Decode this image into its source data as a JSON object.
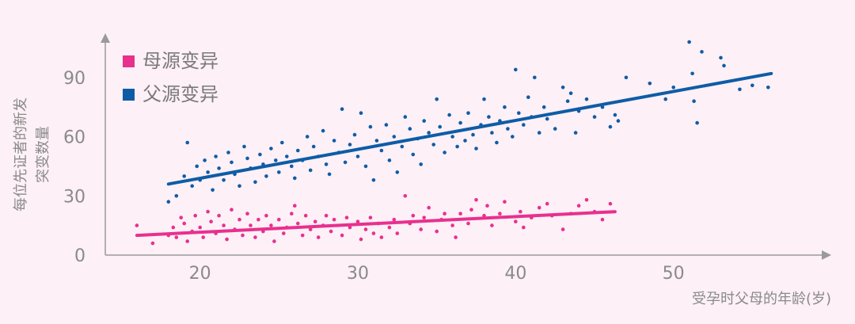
{
  "chart_data": {
    "type": "scatter",
    "title": "",
    "xlabel": "受孕时父母的年龄(岁)",
    "ylabel_line1": "每位先证者的新发",
    "ylabel_line2": "突变数量",
    "x_ticks": [
      "20",
      "30",
      "40",
      "50"
    ],
    "y_ticks": [
      "0",
      "30",
      "60",
      "90"
    ],
    "xlim": [
      15,
      60
    ],
    "ylim": [
      0,
      110
    ],
    "grid": false,
    "legend_position": "top-left",
    "colors": {
      "maternal": "#e8308f",
      "paternal": "#0e5ca6",
      "axis": "#9a9a9a",
      "background": "#fdf0f6"
    },
    "series": [
      {
        "name": "母源变异",
        "key": "maternal",
        "color": "#e8308f",
        "trend": {
          "x": [
            16,
            46.3
          ],
          "y": [
            10,
            22
          ]
        },
        "points": [
          [
            16,
            15
          ],
          [
            17,
            6
          ],
          [
            18,
            10
          ],
          [
            18.3,
            14
          ],
          [
            18.5,
            9
          ],
          [
            18.8,
            19
          ],
          [
            19,
            16
          ],
          [
            19.2,
            7
          ],
          [
            19.5,
            12
          ],
          [
            19.7,
            20
          ],
          [
            20,
            14
          ],
          [
            20.2,
            9
          ],
          [
            20.5,
            22
          ],
          [
            20.7,
            17
          ],
          [
            21,
            11
          ],
          [
            21.2,
            20
          ],
          [
            21.5,
            15
          ],
          [
            21.7,
            8
          ],
          [
            22,
            23
          ],
          [
            22.2,
            13
          ],
          [
            22.5,
            18
          ],
          [
            22.7,
            10
          ],
          [
            23,
            21
          ],
          [
            23.2,
            15
          ],
          [
            23.5,
            9
          ],
          [
            23.7,
            18
          ],
          [
            24,
            12
          ],
          [
            24.2,
            20
          ],
          [
            24.5,
            15
          ],
          [
            24.7,
            7
          ],
          [
            25,
            18
          ],
          [
            25.3,
            11
          ],
          [
            25.5,
            14
          ],
          [
            25.8,
            21
          ],
          [
            26,
            25
          ],
          [
            26.2,
            16
          ],
          [
            26.5,
            10
          ],
          [
            26.7,
            20
          ],
          [
            27,
            13
          ],
          [
            27.3,
            17
          ],
          [
            27.5,
            9
          ],
          [
            27.8,
            15
          ],
          [
            28,
            20
          ],
          [
            28.3,
            12
          ],
          [
            28.5,
            18
          ],
          [
            29,
            10
          ],
          [
            29.3,
            19
          ],
          [
            29.5,
            14
          ],
          [
            30,
            17
          ],
          [
            30.2,
            8
          ],
          [
            30.5,
            13
          ],
          [
            30.8,
            19
          ],
          [
            31,
            11
          ],
          [
            31.3,
            16
          ],
          [
            31.5,
            9
          ],
          [
            32,
            14
          ],
          [
            32.3,
            18
          ],
          [
            32.5,
            11
          ],
          [
            33,
            30
          ],
          [
            33.3,
            16
          ],
          [
            33.5,
            20
          ],
          [
            34,
            13
          ],
          [
            34.2,
            19
          ],
          [
            34.5,
            24
          ],
          [
            35,
            12
          ],
          [
            35.3,
            18
          ],
          [
            35.5,
            21
          ],
          [
            36,
            15
          ],
          [
            36.2,
            9
          ],
          [
            36.5,
            21
          ],
          [
            37,
            16
          ],
          [
            37.2,
            23
          ],
          [
            37.5,
            28
          ],
          [
            38,
            20
          ],
          [
            38.2,
            25
          ],
          [
            38.5,
            15
          ],
          [
            39,
            21
          ],
          [
            39.3,
            27
          ],
          [
            40,
            17
          ],
          [
            40.3,
            22
          ],
          [
            40.5,
            14
          ],
          [
            41,
            19
          ],
          [
            41.5,
            24
          ],
          [
            42,
            26
          ],
          [
            42.3,
            20
          ],
          [
            43,
            13
          ],
          [
            43.5,
            21
          ],
          [
            44,
            25
          ],
          [
            44.5,
            28
          ],
          [
            45,
            22
          ],
          [
            45.5,
            18
          ],
          [
            46,
            26
          ]
        ]
      },
      {
        "name": "父源变异",
        "key": "paternal",
        "color": "#0e5ca6",
        "trend": {
          "x": [
            18,
            56.2
          ],
          "y": [
            36,
            92
          ]
        },
        "points": [
          [
            18,
            27
          ],
          [
            18.5,
            30
          ],
          [
            19,
            40
          ],
          [
            19.2,
            57
          ],
          [
            19.5,
            35
          ],
          [
            19.8,
            45
          ],
          [
            20,
            38
          ],
          [
            20.3,
            48
          ],
          [
            20.5,
            42
          ],
          [
            20.8,
            33
          ],
          [
            21,
            50
          ],
          [
            21.2,
            44
          ],
          [
            21.5,
            38
          ],
          [
            21.8,
            52
          ],
          [
            22,
            47
          ],
          [
            22.2,
            41
          ],
          [
            22.5,
            35
          ],
          [
            22.8,
            55
          ],
          [
            23,
            49
          ],
          [
            23.2,
            44
          ],
          [
            23.5,
            37
          ],
          [
            23.8,
            51
          ],
          [
            24,
            46
          ],
          [
            24.2,
            40
          ],
          [
            24.5,
            54
          ],
          [
            24.8,
            48
          ],
          [
            25,
            42
          ],
          [
            25.2,
            57
          ],
          [
            25.5,
            50
          ],
          [
            25.8,
            45
          ],
          [
            26,
            39
          ],
          [
            26.2,
            53
          ],
          [
            26.5,
            48
          ],
          [
            26.8,
            60
          ],
          [
            27,
            43
          ],
          [
            27.2,
            55
          ],
          [
            27.5,
            50
          ],
          [
            27.8,
            63
          ],
          [
            28,
            46
          ],
          [
            28.2,
            41
          ],
          [
            28.5,
            58
          ],
          [
            28.8,
            52
          ],
          [
            29,
            74
          ],
          [
            29.2,
            47
          ],
          [
            29.5,
            56
          ],
          [
            29.8,
            61
          ],
          [
            30,
            50
          ],
          [
            30.2,
            72
          ],
          [
            30.5,
            45
          ],
          [
            30.8,
            65
          ],
          [
            31,
            38
          ],
          [
            31.2,
            58
          ],
          [
            31.5,
            53
          ],
          [
            31.8,
            66
          ],
          [
            32,
            48
          ],
          [
            32.3,
            60
          ],
          [
            32.5,
            42
          ],
          [
            32.8,
            55
          ],
          [
            33,
            70
          ],
          [
            33.3,
            64
          ],
          [
            33.5,
            51
          ],
          [
            33.8,
            59
          ],
          [
            34,
            46
          ],
          [
            34.2,
            68
          ],
          [
            34.5,
            62
          ],
          [
            34.8,
            56
          ],
          [
            35,
            79
          ],
          [
            35.2,
            65
          ],
          [
            35.5,
            52
          ],
          [
            35.8,
            71
          ],
          [
            36,
            60
          ],
          [
            36.3,
            55
          ],
          [
            36.5,
            67
          ],
          [
            36.8,
            58
          ],
          [
            37,
            72
          ],
          [
            37.3,
            61
          ],
          [
            37.5,
            54
          ],
          [
            37.8,
            66
          ],
          [
            38,
            79
          ],
          [
            38.3,
            70
          ],
          [
            38.5,
            62
          ],
          [
            38.8,
            57
          ],
          [
            39,
            68
          ],
          [
            39.3,
            75
          ],
          [
            39.5,
            64
          ],
          [
            39.8,
            60
          ],
          [
            40,
            94
          ],
          [
            40.2,
            72
          ],
          [
            40.5,
            66
          ],
          [
            40.8,
            80
          ],
          [
            41,
            70
          ],
          [
            41.2,
            90
          ],
          [
            41.5,
            62
          ],
          [
            41.8,
            75
          ],
          [
            42,
            69
          ],
          [
            42.5,
            64
          ],
          [
            43,
            85
          ],
          [
            43.3,
            78
          ],
          [
            43.5,
            82
          ],
          [
            43.8,
            62
          ],
          [
            44,
            73
          ],
          [
            44.5,
            79
          ],
          [
            45,
            70
          ],
          [
            45.5,
            75
          ],
          [
            46,
            65
          ],
          [
            46.3,
            71
          ],
          [
            46.5,
            68
          ],
          [
            47,
            90
          ],
          [
            48.5,
            87
          ],
          [
            49.5,
            79
          ],
          [
            50,
            85
          ],
          [
            51,
            108
          ],
          [
            51.2,
            92
          ],
          [
            51.3,
            78
          ],
          [
            51.5,
            67
          ],
          [
            51.8,
            103
          ],
          [
            53,
            100
          ],
          [
            53.2,
            96
          ],
          [
            54.2,
            84
          ],
          [
            55,
            86
          ],
          [
            56,
            85
          ]
        ]
      }
    ]
  }
}
